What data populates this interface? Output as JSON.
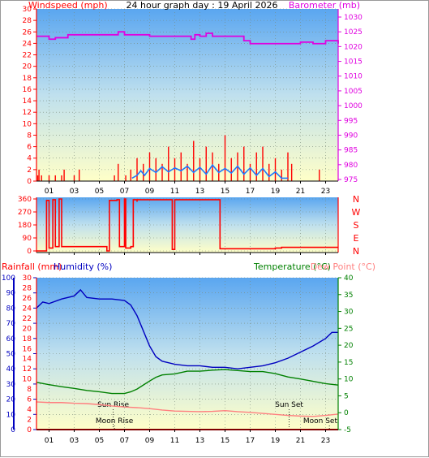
{
  "chart_data": [
    {
      "type": "line",
      "title": "24 hour graph day : 19 April 2026",
      "left_axis_label": "Windspeed (mph)",
      "right_axis_label": "Barometer (mb)",
      "left_ticks": [
        0,
        2,
        4,
        6,
        8,
        10,
        12,
        14,
        16,
        18,
        20,
        22,
        24,
        26,
        28,
        30
      ],
      "right_ticks": [
        975,
        980,
        985,
        990,
        995,
        1000,
        1005,
        1010,
        1015,
        1020,
        1025,
        1030
      ],
      "x_ticks": [
        "01",
        "03",
        "05",
        "07",
        "09",
        "11",
        "13",
        "15",
        "17",
        "19",
        "21",
        "23"
      ],
      "ylim": [
        0,
        30
      ],
      "ylim_right": [
        975,
        1030
      ],
      "series": [
        {
          "name": "Barometer",
          "color": "#e000e0",
          "axis": "right",
          "step": true,
          "x": [
            0,
            1,
            1.5,
            2.5,
            6.5,
            7,
            9,
            12.3,
            12.6,
            13,
            13.5,
            14,
            16.5,
            17,
            20,
            21,
            22,
            23,
            24
          ],
          "values": [
            1023.5,
            1022.5,
            1023,
            1024,
            1025,
            1024,
            1023.5,
            1022.5,
            1024,
            1023.5,
            1024.5,
            1023.5,
            1022,
            1021,
            1021,
            1021.5,
            1021,
            1022,
            1021
          ]
        },
        {
          "name": "Gust",
          "color": "#ff0000",
          "axis": "left",
          "x": [
            0.1,
            0.2,
            0.4,
            1,
            1.5,
            2,
            2.2,
            3,
            3.4,
            6.2,
            6.5,
            7.1,
            7.5,
            8,
            8.5,
            9,
            9.5,
            10,
            10.5,
            11,
            11.5,
            12,
            12.5,
            13,
            13.5,
            14,
            14.5,
            15,
            15.5,
            16,
            16.5,
            17,
            17.5,
            18,
            18.5,
            19,
            19.5,
            20,
            20.3,
            22.5
          ],
          "values": [
            1,
            2,
            1,
            1,
            1,
            1,
            2,
            1,
            2,
            1,
            3,
            1,
            2,
            4,
            3,
            5,
            4,
            3,
            6,
            4,
            5,
            3,
            7,
            4,
            6,
            5,
            3,
            8,
            4,
            5,
            6,
            3,
            5,
            6,
            3,
            4,
            2,
            5,
            3,
            2
          ]
        },
        {
          "name": "Wind",
          "color": "#1e78ff",
          "axis": "left",
          "x": [
            7.6,
            8,
            8.3,
            8.6,
            9,
            9.5,
            10,
            10.5,
            11,
            11.5,
            12,
            12.5,
            13,
            13.5,
            14,
            14.5,
            15,
            15.5,
            16,
            16.5,
            17,
            17.5,
            18,
            18.5,
            19,
            19.5,
            20
          ],
          "values": [
            0.5,
            1,
            1.8,
            1,
            2.2,
            1.5,
            2.5,
            1.6,
            2.3,
            1.8,
            2.6,
            1.5,
            2.4,
            1.2,
            2.8,
            1.5,
            2.2,
            1.4,
            2.6,
            1.2,
            2.3,
            1,
            2.2,
            0.8,
            1.6,
            0.5,
            0.5
          ]
        }
      ]
    },
    {
      "type": "line",
      "yticks": [
        0,
        90,
        180,
        270,
        360
      ],
      "direction_labels": [
        "N",
        "W",
        "S",
        "E",
        "N"
      ],
      "x_ticks": [
        "01",
        "03",
        "05",
        "07",
        "09",
        "11",
        "13",
        "15",
        "17",
        "19",
        "21",
        "23"
      ],
      "ylim": [
        0,
        360
      ],
      "series": [
        {
          "name": "Wind Direction",
          "color": "#ff0000",
          "step": true,
          "x": [
            0,
            0.8,
            1,
            1.3,
            1.5,
            1.8,
            2,
            3.5,
            5.6,
            5.8,
            6.4,
            6.6,
            7,
            7.1,
            7.5,
            7.7,
            8,
            8,
            10.7,
            10.8,
            11,
            11.1,
            14.5,
            14.6,
            18.5,
            19,
            19.5,
            24
          ],
          "values": [
            0,
            350,
            20,
            355,
            30,
            360,
            30,
            30,
            0,
            350,
            355,
            30,
            360,
            20,
            30,
            355,
            340,
            355,
            355,
            10,
            355,
            355,
            355,
            15,
            15,
            20,
            25,
            25
          ]
        }
      ]
    },
    {
      "type": "line",
      "left_axis_1_label": "Rainfall (mm)",
      "left_axis_2_label": "Humidity (%)",
      "right_axis_1_label": "Temperature (°C)",
      "right_axis_2_label": "Dew Point (°C)",
      "humidity_ticks": [
        0,
        10,
        20,
        30,
        40,
        50,
        60,
        70,
        80,
        90,
        100
      ],
      "rain_ticks": [
        0,
        2,
        4,
        6,
        8,
        10,
        12,
        14,
        16,
        18,
        20,
        22,
        24,
        26,
        28,
        30
      ],
      "temp_ticks": [
        -5,
        0,
        5,
        10,
        15,
        20,
        25,
        30,
        35,
        40
      ],
      "x_ticks": [
        "01",
        "03",
        "05",
        "07",
        "09",
        "11",
        "13",
        "15",
        "17",
        "19",
        "21",
        "23"
      ],
      "annotations": [
        {
          "label": "Sun Rise",
          "x": 6.1
        },
        {
          "label": "Sun Set",
          "x": 20.1
        },
        {
          "label": "Moon Rise",
          "x": 6.2
        },
        {
          "label": "Moon Set",
          "x": 23.3
        }
      ],
      "series": [
        {
          "name": "Humidity",
          "color": "#0000c0",
          "axis": "humidity",
          "x": [
            0,
            0.5,
            1,
            2,
            3,
            3.5,
            4,
            5,
            6,
            7,
            7.5,
            8,
            8.5,
            9,
            9.5,
            10,
            10.5,
            11,
            12,
            13,
            14,
            15,
            16,
            17,
            18,
            19,
            20,
            21,
            22,
            23,
            23.5,
            24
          ],
          "values": [
            80,
            84,
            83,
            86,
            88,
            92,
            87,
            86,
            86,
            85,
            82,
            75,
            65,
            55,
            48,
            45,
            44,
            43,
            42,
            42,
            41,
            41,
            40,
            41,
            42,
            44,
            47,
            51,
            55,
            60,
            64,
            64
          ]
        },
        {
          "name": "Temperature",
          "color": "#008000",
          "axis": "temperature",
          "x": [
            0,
            1,
            2,
            3,
            4,
            5,
            6,
            7,
            7.5,
            8,
            8.5,
            9,
            9.5,
            10,
            11,
            12,
            13,
            14,
            15,
            16,
            17,
            18,
            19,
            20,
            21,
            22,
            23,
            24
          ],
          "values": [
            9,
            8.3,
            7.7,
            7.2,
            6.6,
            6.2,
            5.7,
            5.7,
            6.2,
            7,
            8.2,
            9.4,
            10.5,
            11.2,
            11.5,
            12.3,
            12.3,
            12.6,
            12.8,
            12.5,
            12.2,
            12.2,
            11.6,
            10.6,
            10,
            9.3,
            8.6,
            8.2
          ]
        },
        {
          "name": "Dew Point",
          "color": "#ff8080",
          "axis": "temperature",
          "x": [
            0,
            1,
            2,
            3,
            4,
            5,
            6,
            7,
            8,
            9,
            10,
            11,
            12,
            13,
            14,
            15,
            16,
            17,
            18,
            19,
            20,
            21,
            22,
            23,
            24
          ],
          "values": [
            3.2,
            3,
            3,
            2.8,
            2.7,
            2.4,
            2,
            1.7,
            1.5,
            1.2,
            0.8,
            0.5,
            0.4,
            0.3,
            0.4,
            0.6,
            0.3,
            0.1,
            -0.2,
            -0.5,
            -0.8,
            -1,
            -1.1,
            -0.8,
            -0.4
          ]
        },
        {
          "name": "Rainfall",
          "color": "#ff0000",
          "axis": "rain",
          "x": [
            0,
            24
          ],
          "values": [
            0,
            0
          ]
        }
      ]
    }
  ]
}
